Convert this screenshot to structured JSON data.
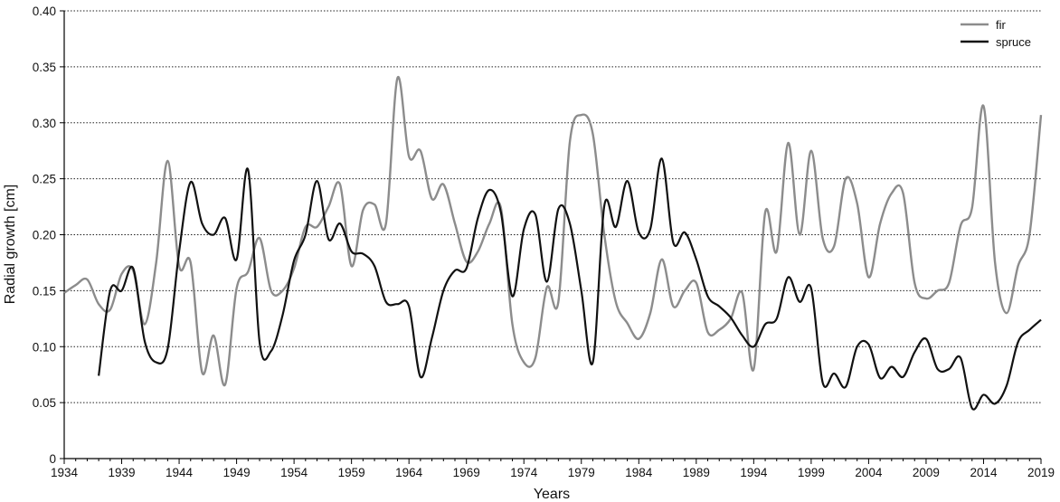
{
  "chart_data": {
    "type": "line",
    "title": "",
    "xlabel": "Years",
    "ylabel": "Radial growth [cm]",
    "xlim": [
      1934,
      2019
    ],
    "ylim": [
      0,
      0.4
    ],
    "x_ticks": [
      1934,
      1939,
      1944,
      1949,
      1954,
      1959,
      1964,
      1969,
      1974,
      1979,
      1984,
      1989,
      1994,
      1999,
      2004,
      2009,
      2014,
      2019
    ],
    "y_ticks": [
      0,
      0.05,
      0.1,
      0.15,
      0.2,
      0.25,
      0.3,
      0.35,
      0.4
    ],
    "y_tick_labels": [
      "0",
      "0.05",
      "0.10",
      "0.15",
      "0.20",
      "0.25",
      "0.30",
      "0.35",
      "0.40"
    ],
    "grid": "horizontal dotted",
    "legend_position": "top-right",
    "series": [
      {
        "name": "fir",
        "color": "#8c8c8c",
        "x": [
          1934,
          1935,
          1936,
          1937,
          1938,
          1939,
          1940,
          1941,
          1942,
          1943,
          1944,
          1945,
          1946,
          1947,
          1948,
          1949,
          1950,
          1951,
          1952,
          1953,
          1954,
          1955,
          1956,
          1957,
          1958,
          1959,
          1960,
          1961,
          1962,
          1963,
          1964,
          1965,
          1966,
          1967,
          1968,
          1969,
          1970,
          1971,
          1972,
          1973,
          1974,
          1975,
          1976,
          1977,
          1978,
          1979,
          1980,
          1981,
          1982,
          1983,
          1984,
          1985,
          1986,
          1987,
          1988,
          1989,
          1990,
          1991,
          1992,
          1993,
          1994,
          1995,
          1996,
          1997,
          1998,
          1999,
          2000,
          2001,
          2002,
          2003,
          2004,
          2005,
          2006,
          2007,
          2008,
          2009,
          2010,
          2011,
          2012,
          2013,
          2014,
          2015,
          2016,
          2017,
          2018,
          2019
        ],
        "y": [
          0.148,
          0.155,
          0.16,
          0.138,
          0.133,
          0.165,
          0.168,
          0.12,
          0.175,
          0.266,
          0.172,
          0.175,
          0.077,
          0.11,
          0.066,
          0.152,
          0.167,
          0.197,
          0.15,
          0.15,
          0.17,
          0.207,
          0.207,
          0.225,
          0.245,
          0.172,
          0.222,
          0.227,
          0.21,
          0.34,
          0.27,
          0.275,
          0.232,
          0.245,
          0.21,
          0.176,
          0.185,
          0.21,
          0.224,
          0.12,
          0.086,
          0.09,
          0.153,
          0.14,
          0.283,
          0.307,
          0.29,
          0.2,
          0.14,
          0.121,
          0.107,
          0.13,
          0.178,
          0.136,
          0.15,
          0.157,
          0.113,
          0.115,
          0.125,
          0.148,
          0.08,
          0.22,
          0.185,
          0.282,
          0.2,
          0.275,
          0.197,
          0.19,
          0.25,
          0.228,
          0.162,
          0.21,
          0.237,
          0.237,
          0.157,
          0.143,
          0.15,
          0.157,
          0.208,
          0.224,
          0.315,
          0.175,
          0.13,
          0.172,
          0.2,
          0.307
        ]
      },
      {
        "name": "spruce",
        "color": "#111111",
        "x": [
          1937,
          1938,
          1939,
          1940,
          1941,
          1942,
          1943,
          1944,
          1945,
          1946,
          1947,
          1948,
          1949,
          1950,
          1951,
          1952,
          1953,
          1954,
          1955,
          1956,
          1957,
          1958,
          1959,
          1960,
          1961,
          1962,
          1963,
          1964,
          1965,
          1966,
          1967,
          1968,
          1969,
          1970,
          1971,
          1972,
          1973,
          1974,
          1975,
          1976,
          1977,
          1978,
          1979,
          1980,
          1981,
          1982,
          1983,
          1984,
          1985,
          1986,
          1987,
          1988,
          1989,
          1990,
          1991,
          1992,
          1993,
          1994,
          1995,
          1996,
          1997,
          1998,
          1999,
          2000,
          2001,
          2002,
          2003,
          2004,
          2005,
          2006,
          2007,
          2008,
          2009,
          2010,
          2011,
          2012,
          2013,
          2014,
          2015,
          2016,
          2017,
          2018,
          2019
        ],
        "y": [
          0.074,
          0.15,
          0.15,
          0.17,
          0.105,
          0.086,
          0.098,
          0.185,
          0.247,
          0.21,
          0.2,
          0.215,
          0.178,
          0.258,
          0.104,
          0.096,
          0.128,
          0.177,
          0.2,
          0.248,
          0.196,
          0.21,
          0.185,
          0.183,
          0.172,
          0.14,
          0.138,
          0.136,
          0.073,
          0.108,
          0.15,
          0.168,
          0.17,
          0.215,
          0.24,
          0.22,
          0.145,
          0.205,
          0.218,
          0.158,
          0.223,
          0.21,
          0.15,
          0.086,
          0.226,
          0.207,
          0.248,
          0.202,
          0.205,
          0.268,
          0.193,
          0.202,
          0.178,
          0.145,
          0.136,
          0.126,
          0.11,
          0.1,
          0.12,
          0.125,
          0.162,
          0.14,
          0.152,
          0.068,
          0.076,
          0.064,
          0.1,
          0.102,
          0.072,
          0.082,
          0.073,
          0.095,
          0.107,
          0.08,
          0.08,
          0.09,
          0.045,
          0.057,
          0.049,
          0.065,
          0.104,
          0.115,
          0.124
        ]
      }
    ]
  }
}
